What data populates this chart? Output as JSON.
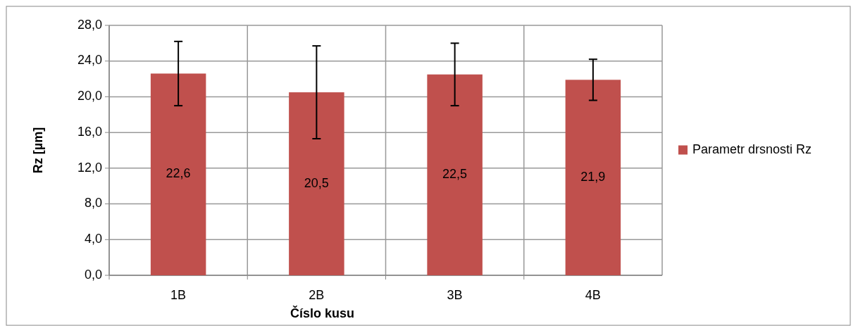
{
  "chart_data": {
    "type": "bar",
    "xlabel": "Číslo kusu",
    "ylabel": "Rz [µm]",
    "categories": [
      "1B",
      "2B",
      "3B",
      "4B"
    ],
    "series": [
      {
        "name": "Parametr drsnosti Rz",
        "color": "#c0504d",
        "values": [
          22.6,
          20.5,
          22.5,
          21.9
        ],
        "errors": [
          3.6,
          5.2,
          3.5,
          2.3
        ],
        "value_labels": [
          "22,6",
          "20,5",
          "22,5",
          "21,9"
        ]
      }
    ],
    "ylim": [
      0,
      28
    ],
    "yticks": [
      {
        "value": 0,
        "label": "0,0"
      },
      {
        "value": 4,
        "label": "4,0"
      },
      {
        "value": 8,
        "label": "8,0"
      },
      {
        "value": 12,
        "label": "12,0"
      },
      {
        "value": 16,
        "label": "16,0"
      },
      {
        "value": 20,
        "label": "20,0"
      },
      {
        "value": 24,
        "label": "24,0"
      },
      {
        "value": 28,
        "label": "28,0"
      }
    ],
    "grid": true,
    "legend": "right"
  }
}
